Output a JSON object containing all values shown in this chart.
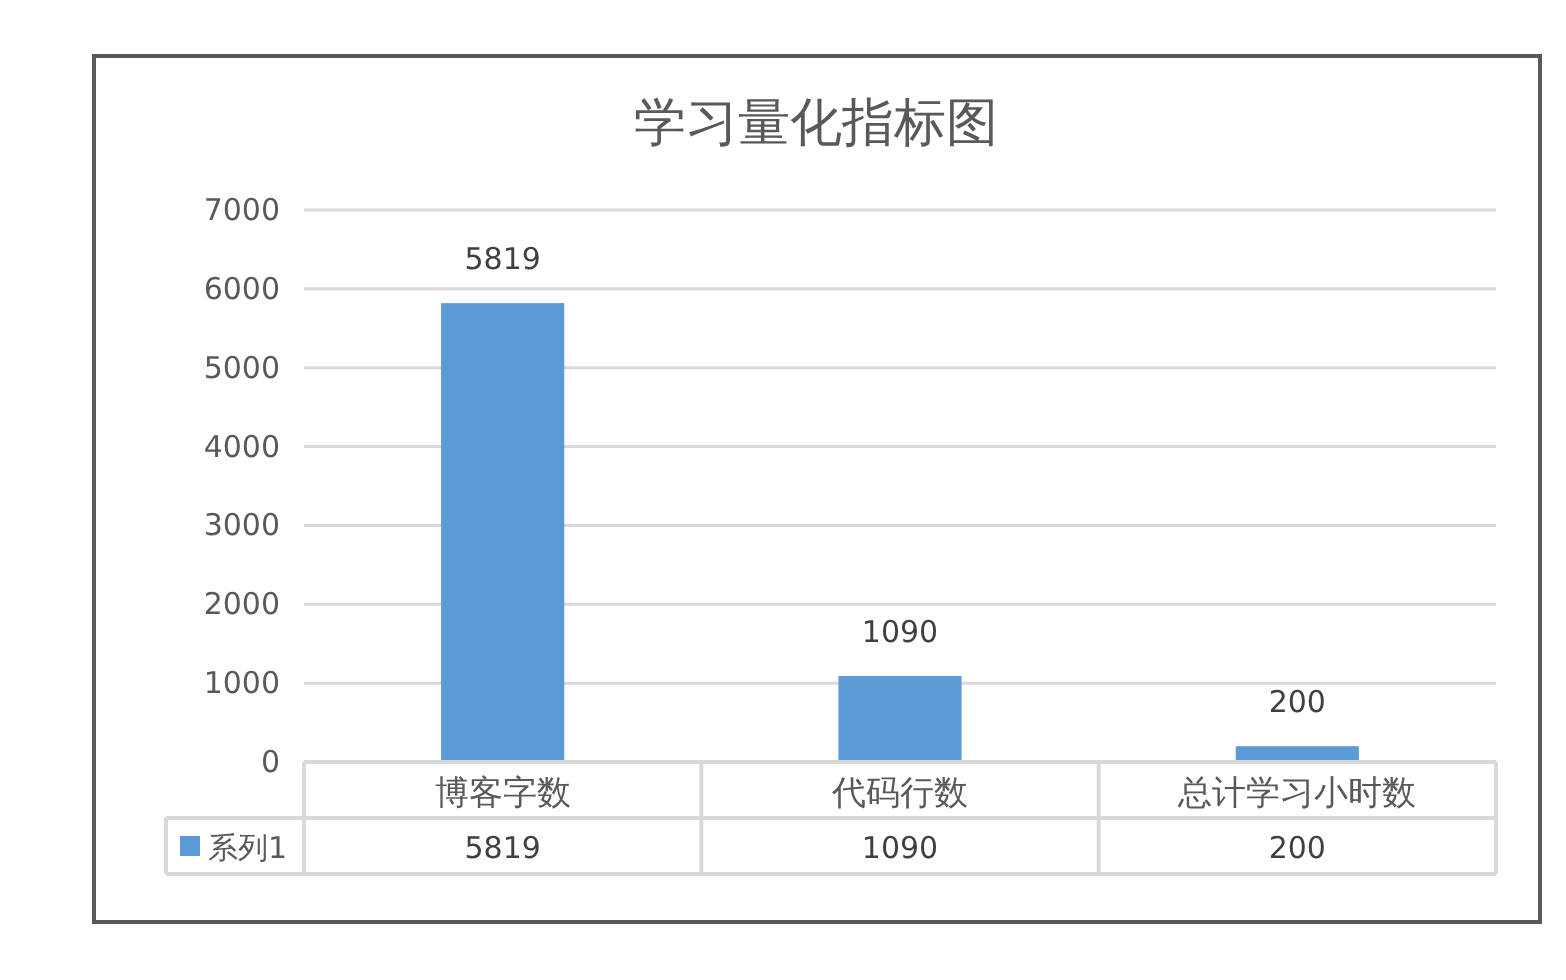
{
  "chart_data": {
    "type": "bar",
    "title": "学习量化指标图",
    "categories": [
      "博客字数",
      "代码行数",
      "总计学习小时数"
    ],
    "series": [
      {
        "name": "系列1",
        "color": "#5b9bd5",
        "values": [
          5819,
          1090,
          200
        ],
        "value_labels": [
          "5819",
          "1090",
          "200"
        ]
      }
    ],
    "ylim": [
      0,
      7000
    ],
    "yticks": [
      0,
      1000,
      2000,
      3000,
      4000,
      5000,
      6000,
      7000
    ],
    "grid": "y",
    "data_labels": true,
    "annotations": [
      "5819",
      "1090",
      "200"
    ]
  }
}
